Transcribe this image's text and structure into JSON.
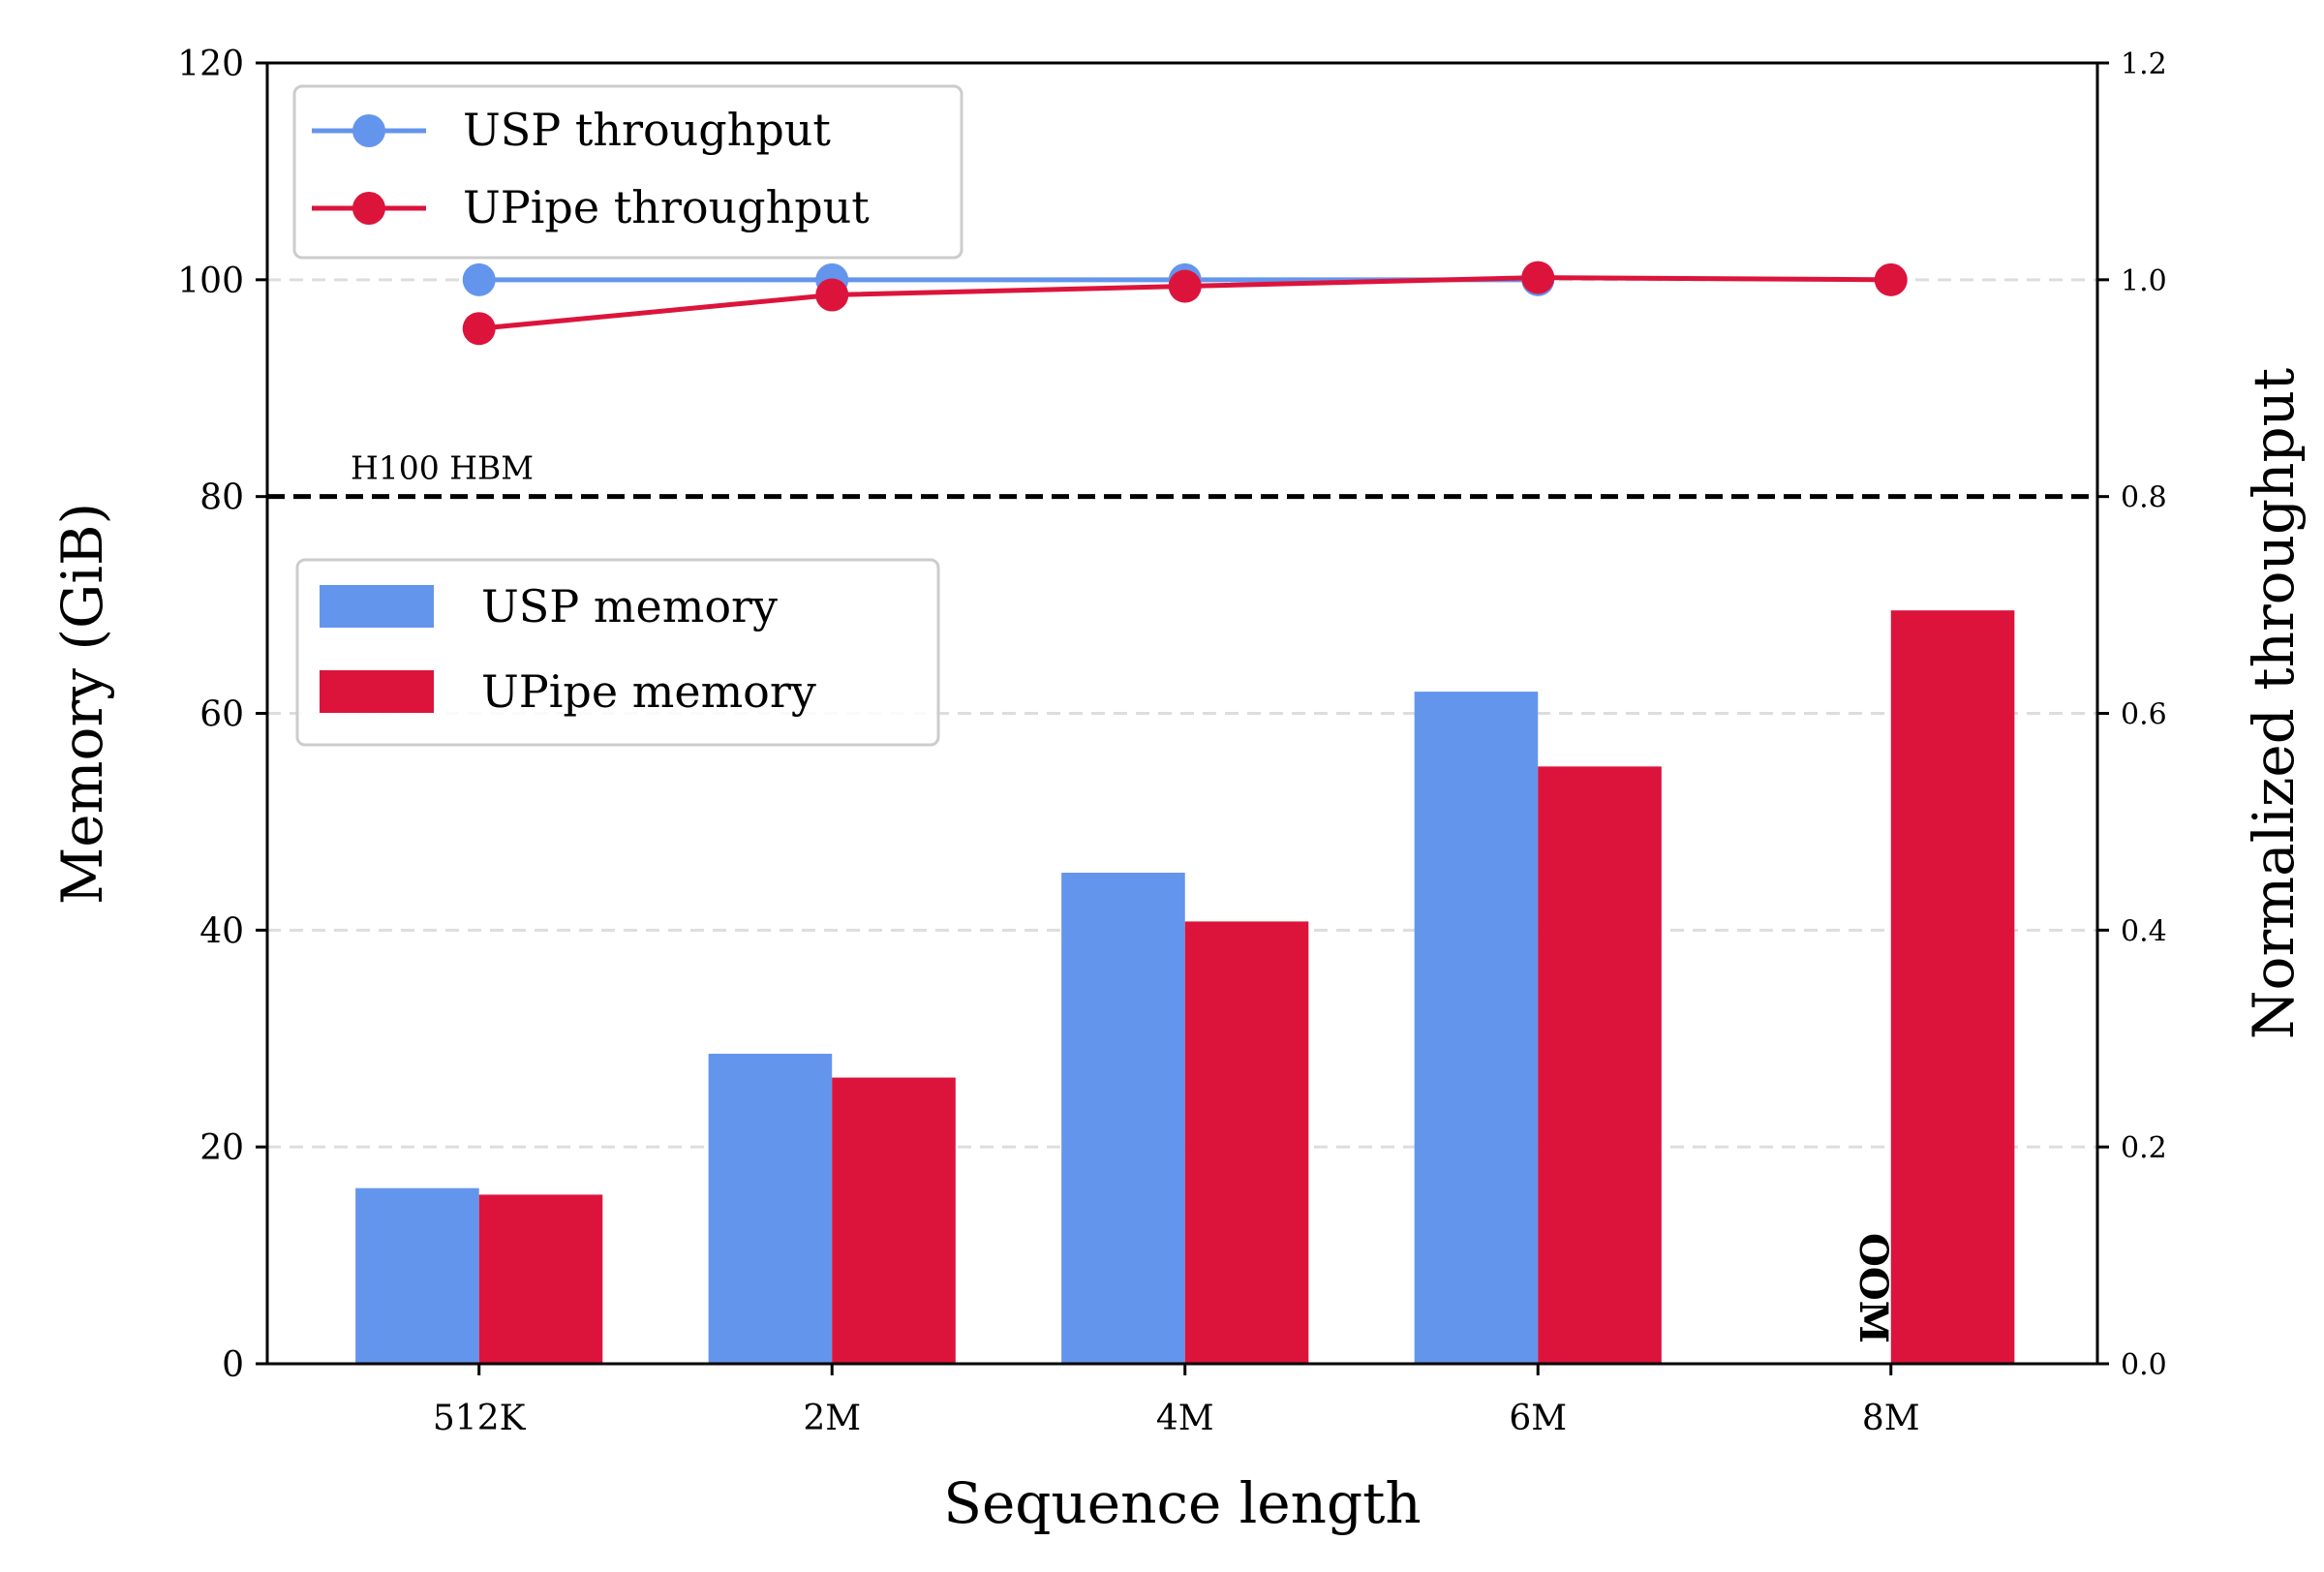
{
  "chart_data": {
    "type": "bar",
    "categories": [
      "512K",
      "2M",
      "4M",
      "6M",
      "8M"
    ],
    "bar_series": [
      {
        "name": "USP memory",
        "color": "#6495ED",
        "values": [
          16.2,
          28.6,
          45.3,
          62.0,
          null
        ]
      },
      {
        "name": "UPipe memory",
        "color": "#DC143C",
        "values": [
          15.6,
          26.4,
          40.8,
          55.1,
          69.5
        ]
      }
    ],
    "line_series": [
      {
        "name": "USP throughput",
        "color": "#6495ED",
        "values": [
          1.0,
          1.0,
          1.0,
          1.0,
          null
        ]
      },
      {
        "name": "UPipe throughput",
        "color": "#DC143C",
        "values": [
          0.955,
          0.986,
          0.994,
          1.002,
          1.0
        ]
      }
    ],
    "xlabel": "Sequence length",
    "ylabel": "Memory (GiB)",
    "y2label": "Normalized throughput",
    "ylim": [
      0,
      120
    ],
    "y2lim": [
      0,
      1.2
    ],
    "yticks": [
      "0",
      "20",
      "40",
      "60",
      "80",
      "100",
      "120"
    ],
    "y2ticks": [
      "0.0",
      "0.2",
      "0.4",
      "0.6",
      "0.8",
      "1.0",
      "1.2"
    ],
    "reference_line": {
      "value": 80,
      "label": "H100 HBM"
    },
    "annotations": [
      {
        "category": "8M",
        "text": "OOM"
      }
    ],
    "grid": "horizontal dashed",
    "legend_lines_position": "upper-left",
    "legend_bars_position": "upper-left below reference line"
  }
}
